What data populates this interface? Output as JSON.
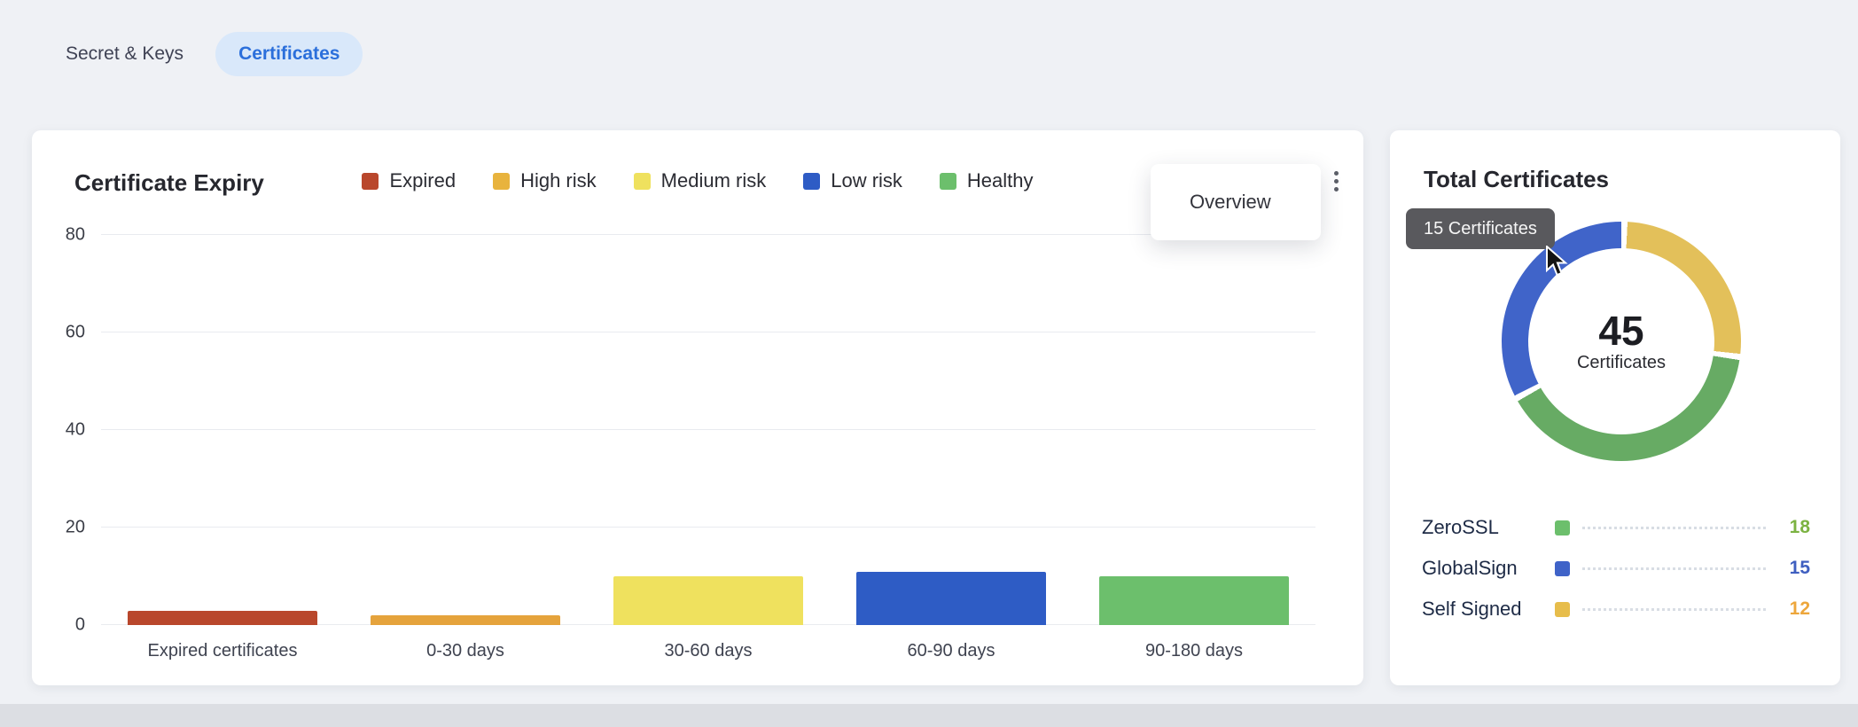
{
  "theme": {
    "page_bg": "#eff1f5",
    "card_bg": "#ffffff",
    "tab_active_bg": "#d9e8fa",
    "tab_active_text": "#2b6fdb",
    "tooltip_bg": "#59595d"
  },
  "tabs": [
    {
      "label": "Secret & Keys",
      "active": false
    },
    {
      "label": "Certificates",
      "active": true
    }
  ],
  "expiry_card": {
    "menu_items": [
      "Overview"
    ]
  },
  "chart_data": [
    {
      "type": "bar",
      "title": "Certificate Expiry",
      "categories": [
        "Expired certificates",
        "0-30 days",
        "30-60 days",
        "60-90 days",
        "90-180 days"
      ],
      "values": [
        3,
        2,
        10,
        11,
        10
      ],
      "bar_colors": [
        "#b9472c",
        "#e5a33c",
        "#efe15e",
        "#2e5cc5",
        "#6cbf6c"
      ],
      "legend": [
        {
          "label": "Expired",
          "color": "#b9472c"
        },
        {
          "label": "High risk",
          "color": "#e8b33d"
        },
        {
          "label": "Medium risk",
          "color": "#efe15e"
        },
        {
          "label": "Low risk",
          "color": "#2e5cc5"
        },
        {
          "label": "Healthy",
          "color": "#6cbf6c"
        }
      ],
      "xlabel": "",
      "ylabel": "",
      "ylim": [
        0,
        80
      ],
      "y_ticks": [
        0,
        20,
        40,
        60,
        80
      ],
      "grid": true,
      "legend_position": "top"
    },
    {
      "type": "pie",
      "donut": true,
      "title": "Total Certificates",
      "tooltip": "15 Certificates",
      "center_value": "45",
      "center_label": "Certificates",
      "segments": [
        {
          "label": "Self Signed",
          "value": 12,
          "color": "#e3c05a"
        },
        {
          "label": "ZeroSSL",
          "value": 18,
          "color": "#67ab64"
        },
        {
          "label": "GlobalSign",
          "value": 15,
          "color": "#4064c9"
        }
      ],
      "legend": [
        {
          "label": "ZeroSSL",
          "swatch": "#6cbf6c",
          "value": 18,
          "value_color": "#7cb342"
        },
        {
          "label": "GlobalSign",
          "swatch": "#3f63c8",
          "value": 15,
          "value_color": "#3f5fc0"
        },
        {
          "label": "Self Signed",
          "swatch": "#e7bd4b",
          "value": 12,
          "value_color": "#eda63b"
        }
      ]
    }
  ]
}
